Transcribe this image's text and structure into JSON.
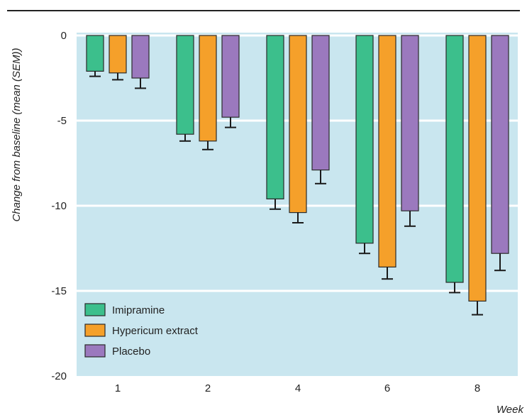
{
  "chart_data": {
    "type": "bar",
    "title": "",
    "xlabel": "Week",
    "ylabel": "Change from baseline (mean (SEM))",
    "categories": [
      "1",
      "2",
      "4",
      "6",
      "8"
    ],
    "ylim": [
      -20,
      0
    ],
    "yticks": [
      0,
      -5,
      -10,
      -15,
      -20
    ],
    "grid": true,
    "legend_position": "bottom-left",
    "series": [
      {
        "name": "Imipramine",
        "color": "#3cbf8c",
        "values": [
          -2.1,
          -5.8,
          -9.6,
          -12.2,
          -14.5
        ],
        "errors": [
          0.3,
          0.4,
          0.6,
          0.6,
          0.6
        ]
      },
      {
        "name": "Hypericum extract",
        "color": "#f5a02a",
        "values": [
          -2.2,
          -6.2,
          -10.4,
          -13.6,
          -15.6
        ],
        "errors": [
          0.4,
          0.5,
          0.6,
          0.7,
          0.8
        ]
      },
      {
        "name": "Placebo",
        "color": "#9b79be",
        "values": [
          -2.5,
          -4.8,
          -7.9,
          -10.3,
          -12.8
        ],
        "errors": [
          0.6,
          0.6,
          0.8,
          0.9,
          1.0
        ]
      }
    ],
    "colors": {
      "plot_background": "#c9e6ef",
      "gridline": "#ffffff",
      "frame_line": "#222222",
      "error_bar": "#1a1a1a"
    }
  }
}
